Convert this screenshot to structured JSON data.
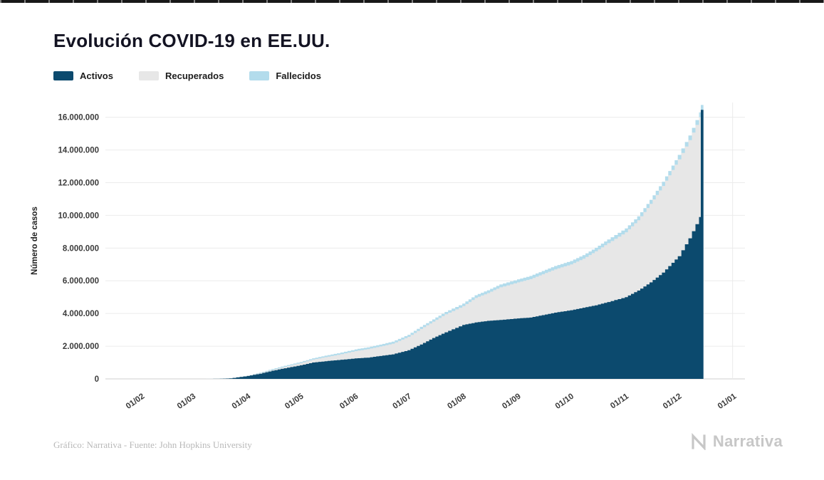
{
  "footer": {
    "credit": "Gráfico: Narrativa - Fuente: John Hopkins University",
    "brand": "Narrativa"
  },
  "colors": {
    "activos": "#0c4a6e",
    "recuperados": "#e7e7e7",
    "fallecidos": "#b3dcec",
    "grid": "#ebebeb",
    "axis": "#cfcfcf"
  },
  "chart_data": {
    "type": "bar",
    "stacked": true,
    "title": "Evolución COVID-19 en EE.UU.",
    "xlabel": "",
    "ylabel": "Número de casos",
    "xlim": [
      -20,
      342
    ],
    "ylim": [
      0,
      16900000
    ],
    "x_days": [
      29,
      43,
      50,
      60,
      67,
      74,
      81,
      90,
      97,
      104,
      111,
      121,
      128,
      135,
      142,
      151,
      158,
      165,
      172,
      182,
      189,
      196,
      203,
      213,
      220,
      227,
      234,
      243,
      250,
      257,
      264,
      274,
      281,
      288,
      295,
      304,
      310,
      316,
      317
    ],
    "series": [
      {
        "name": "Activos",
        "color": "#0c4a6e",
        "values": [
          100,
          3000,
          30000,
          180000,
          320000,
          500000,
          650000,
          830000,
          1000000,
          1080000,
          1150000,
          1250000,
          1300000,
          1400000,
          1500000,
          1750000,
          2100000,
          2500000,
          2850000,
          3300000,
          3450000,
          3550000,
          3600000,
          3700000,
          3750000,
          3900000,
          4050000,
          4200000,
          4350000,
          4500000,
          4700000,
          5000000,
          5400000,
          5900000,
          6500000,
          7500000,
          8600000,
          9900000,
          16450000
        ]
      },
      {
        "name": "Recuperados",
        "color": "#e7e7e7",
        "values": [
          0,
          1000,
          2000,
          10000,
          30000,
          50000,
          90000,
          140000,
          180000,
          250000,
          320000,
          450000,
          520000,
          580000,
          650000,
          820000,
          950000,
          1000000,
          1100000,
          1150000,
          1500000,
          1700000,
          2000000,
          2200000,
          2350000,
          2500000,
          2650000,
          2800000,
          3000000,
          3300000,
          3600000,
          3970000,
          4300000,
          4800000,
          5300000,
          5930000,
          6000000,
          6100000,
          0
        ]
      },
      {
        "name": "Fallecidos",
        "color": "#b3dcec",
        "values": [
          0,
          100,
          2000,
          5000,
          30000,
          55000,
          60000,
          65000,
          80000,
          88000,
          95000,
          105000,
          110000,
          117000,
          122000,
          128000,
          135000,
          139000,
          146000,
          155000,
          165000,
          170000,
          177000,
          185000,
          192000,
          198000,
          204000,
          210000,
          216000,
          220000,
          227000,
          235000,
          240000,
          250000,
          258000,
          270000,
          282000,
          300000,
          300000
        ]
      }
    ],
    "x_ticks": [
      {
        "day": 0,
        "label": "01/02"
      },
      {
        "day": 29,
        "label": "01/03"
      },
      {
        "day": 60,
        "label": "01/04"
      },
      {
        "day": 90,
        "label": "01/05"
      },
      {
        "day": 121,
        "label": "01/06"
      },
      {
        "day": 151,
        "label": "01/07"
      },
      {
        "day": 182,
        "label": "01/08"
      },
      {
        "day": 213,
        "label": "01/09"
      },
      {
        "day": 243,
        "label": "01/10"
      },
      {
        "day": 274,
        "label": "01/11"
      },
      {
        "day": 304,
        "label": "01/12"
      },
      {
        "day": 335,
        "label": "01/01"
      }
    ],
    "y_tick_values": [
      0,
      2000000,
      4000000,
      6000000,
      8000000,
      10000000,
      12000000,
      14000000,
      16000000
    ],
    "y_ticks": [
      "0",
      "2.000.000",
      "4.000.000",
      "6.000.000",
      "8.000.000",
      "10.000.000",
      "12.000.000",
      "14.000.000",
      "16.000.000"
    ],
    "legend_position": "top-left",
    "grid": "horizontal"
  }
}
